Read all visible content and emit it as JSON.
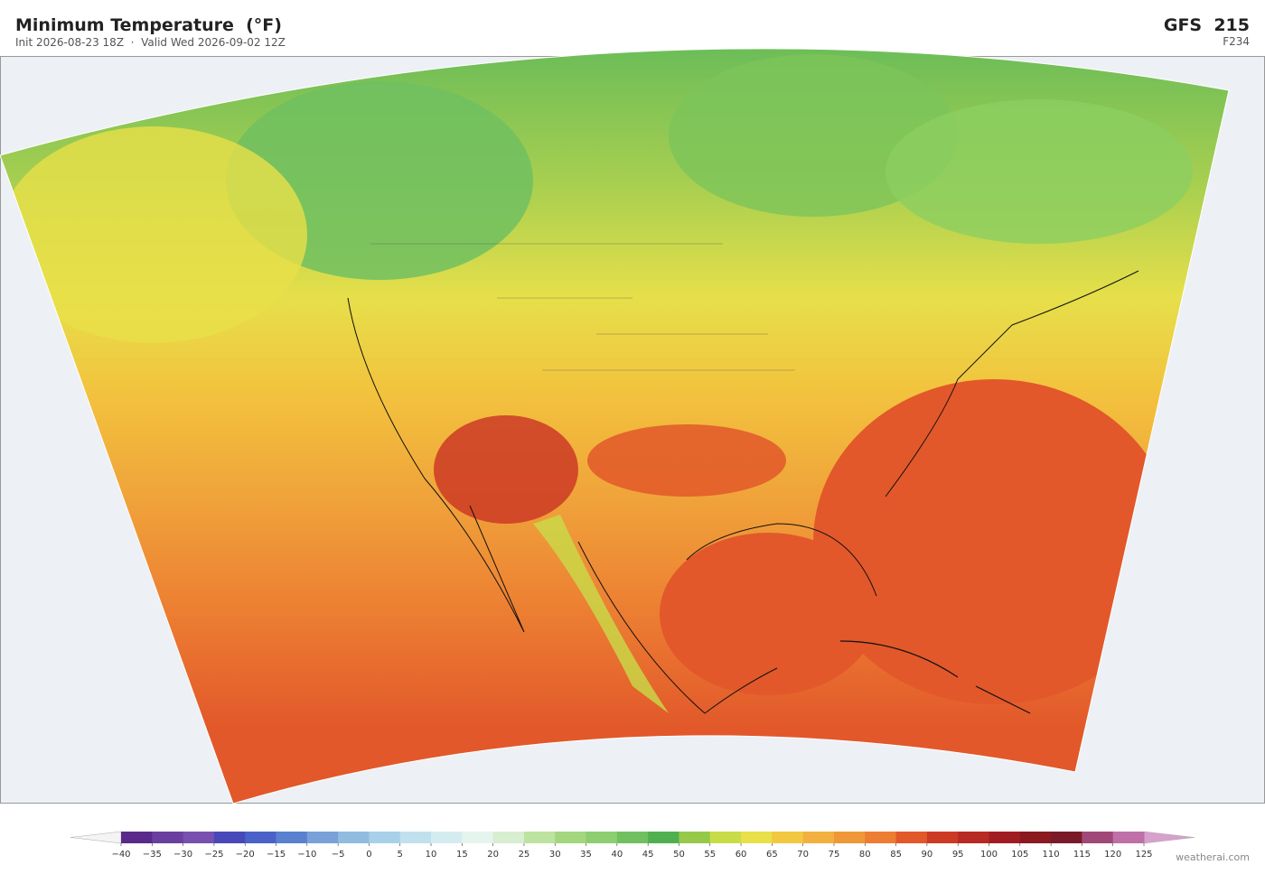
{
  "header": {
    "title": "Minimum Temperature  (°F)",
    "subtitle": "Init 2026-08-23 18Z  ·  Valid Wed 2026-09-02 12Z",
    "model": "GFS  215",
    "forecast_hour": "F234"
  },
  "colorbar": {
    "min": -40,
    "max": 125,
    "colors": [
      "#5a2a8a",
      "#6b3fa0",
      "#7850b0",
      "#4848b8",
      "#4a62c8",
      "#5a80d0",
      "#7aa0d8",
      "#90bce0",
      "#a8d0e8",
      "#c0e0ee",
      "#d4ecf0",
      "#e6f4ee",
      "#d8eed0",
      "#bde3a0",
      "#a3d67f",
      "#8cce70",
      "#70c060",
      "#50b050",
      "#96c84a",
      "#c8dc48",
      "#e8e048",
      "#f2c840",
      "#f2b040",
      "#f09838",
      "#ec7d32",
      "#e2582a",
      "#cc3a26",
      "#b82a24",
      "#a01e22",
      "#8a1a20",
      "#7a1a28",
      "#a04878",
      "#c070a8",
      "#d8a0cc"
    ],
    "under_color": "#f4f4f4",
    "over_color": "#d8a0cc",
    "ticks": [
      {
        "value": -40,
        "label": "−40"
      },
      {
        "value": -35,
        "label": "−35"
      },
      {
        "value": -30,
        "label": "−30"
      },
      {
        "value": -25,
        "label": "−25"
      },
      {
        "value": -20,
        "label": "−20"
      },
      {
        "value": -15,
        "label": "−15"
      },
      {
        "value": -10,
        "label": "−10"
      },
      {
        "value": -5,
        "label": "−5"
      },
      0,
      5,
      10,
      15,
      20,
      25,
      30,
      35,
      40,
      45,
      50,
      55,
      60,
      65,
      70,
      75,
      80,
      85,
      90,
      95,
      100,
      105,
      110,
      115,
      120,
      125
    ]
  },
  "footer": {
    "credit": "weatherai.com"
  }
}
